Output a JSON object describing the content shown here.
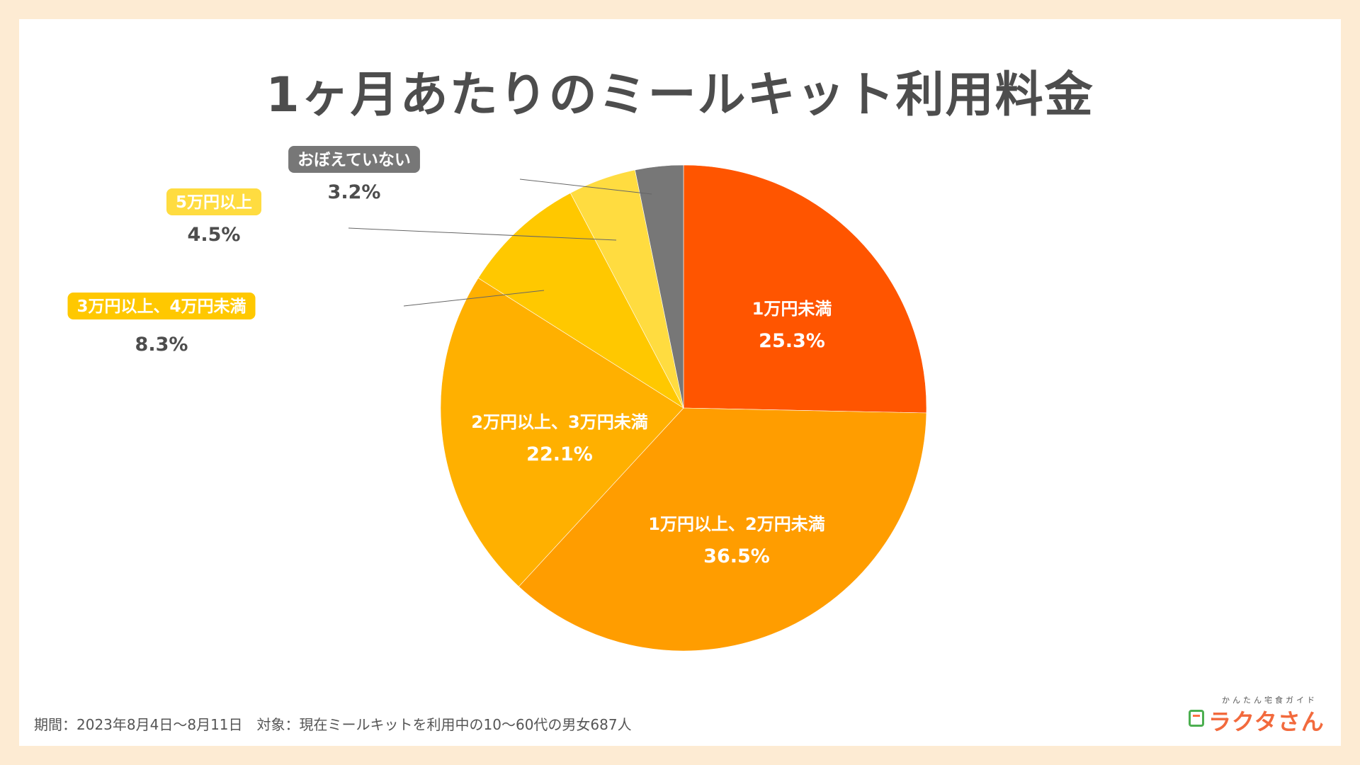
{
  "title": "1ヶ月あたりのミールキット利用料金",
  "footnote": "期間：2023年8月4日〜8月11日　対象：現在ミールキットを利用中の10〜60代の男女687人",
  "brand": {
    "sub": "かんたん宅食ガイド",
    "name": "ラクタさん"
  },
  "chart_data": {
    "type": "pie",
    "title": "1ヶ月あたりのミールキット利用料金",
    "start": "12 o'clock, clockwise",
    "slices": [
      {
        "label": "1万円未満",
        "value": 25.3,
        "value_label": "25.3%",
        "color": "#ff5500",
        "label_style": "inside"
      },
      {
        "label": "1万円以上、2万円未満",
        "value": 36.5,
        "value_label": "36.5%",
        "color": "#ff9d00",
        "label_style": "inside"
      },
      {
        "label": "2万円以上、3万円未満",
        "value": 22.1,
        "value_label": "22.1%",
        "color": "#ffb000",
        "label_style": "inside"
      },
      {
        "label": "3万円以上、4万円未満",
        "value": 8.3,
        "value_label": "8.3%",
        "color": "#ffc800",
        "label_style": "callout"
      },
      {
        "label": "5万円以上",
        "value": 4.5,
        "value_label": "4.5%",
        "color": "#ffdc40",
        "label_style": "callout"
      },
      {
        "label": "おぼえていない",
        "value": 3.2,
        "value_label": "3.2%",
        "color": "#777777",
        "label_style": "callout"
      }
    ]
  }
}
